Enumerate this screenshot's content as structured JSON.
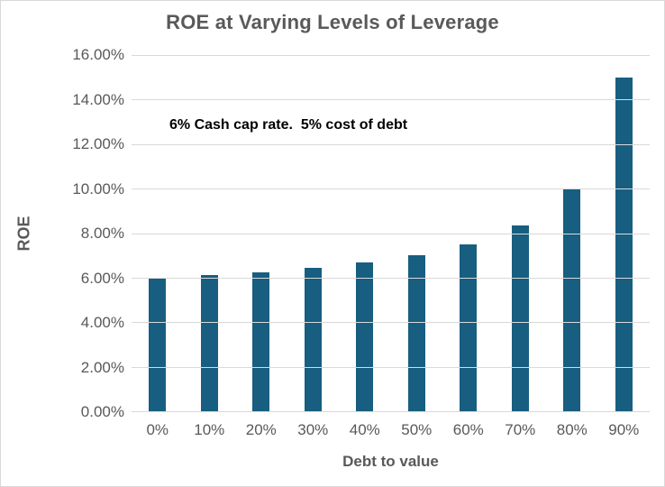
{
  "chart_data": {
    "type": "bar",
    "title": "ROE at Varying Levels of Leverage",
    "annotation": "6% Cash cap rate.  5% cost of debt",
    "xlabel": "Debt to value",
    "ylabel": "ROE",
    "categories": [
      "0%",
      "10%",
      "20%",
      "30%",
      "40%",
      "50%",
      "60%",
      "70%",
      "80%",
      "90%"
    ],
    "values": [
      6.0,
      6.11,
      6.25,
      6.43,
      6.67,
      7.0,
      7.5,
      8.33,
      10.0,
      15.0
    ],
    "ylim": [
      0,
      16
    ],
    "ytick_step": 2,
    "ytick_labels": [
      "0.00%",
      "2.00%",
      "4.00%",
      "6.00%",
      "8.00%",
      "10.00%",
      "12.00%",
      "14.00%",
      "16.00%"
    ],
    "grid": true,
    "legend_position": "none",
    "colors": {
      "bar": "#175E80",
      "text": "#595959",
      "annotation_text": "#000000",
      "gridline": "#D9D9D9",
      "background": "#FFFFFF",
      "frame_border": "#D9D9D9"
    }
  }
}
